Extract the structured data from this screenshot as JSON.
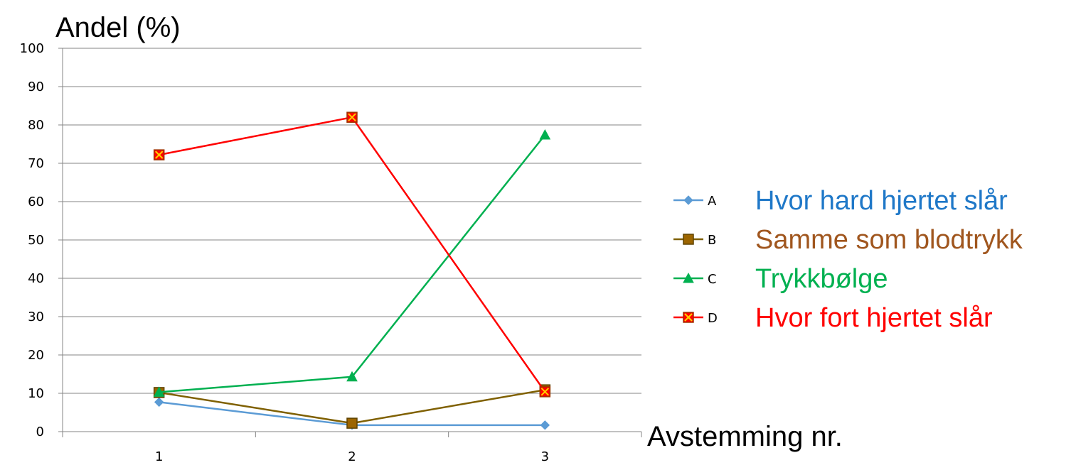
{
  "chart_data": {
    "type": "line",
    "ylabel": "Andel (%)",
    "xlabel": "Avstemming nr.",
    "x": [
      "1",
      "2",
      "3"
    ],
    "ylim": [
      0,
      100
    ],
    "yticks": [
      0,
      10,
      20,
      30,
      40,
      50,
      60,
      70,
      80,
      90,
      100
    ],
    "grid": "horizontal",
    "legend_position": "right",
    "series": [
      {
        "name": "A",
        "description": "Hvor hard hjertet slår",
        "color": "#5B9BD5",
        "text_color": "#1F78C8",
        "marker": "diamond",
        "values": [
          7.7,
          1.7,
          1.7
        ]
      },
      {
        "name": "B",
        "description": "Samme som blodtrykk",
        "color": "#7F6000",
        "text_color": "#A0561E",
        "marker": "square",
        "values": [
          10.2,
          2.2,
          10.9
        ]
      },
      {
        "name": "C",
        "description": "Trykkbølge",
        "color": "#00B050",
        "text_color": "#00B050",
        "marker": "triangle",
        "values": [
          10.3,
          14.3,
          77.4
        ]
      },
      {
        "name": "D",
        "description": "Hvor fort hjertet slår",
        "color": "#FF0000",
        "text_color": "#FF0000",
        "marker": "x-square",
        "values": [
          72.2,
          82.0,
          10.4
        ]
      }
    ]
  }
}
